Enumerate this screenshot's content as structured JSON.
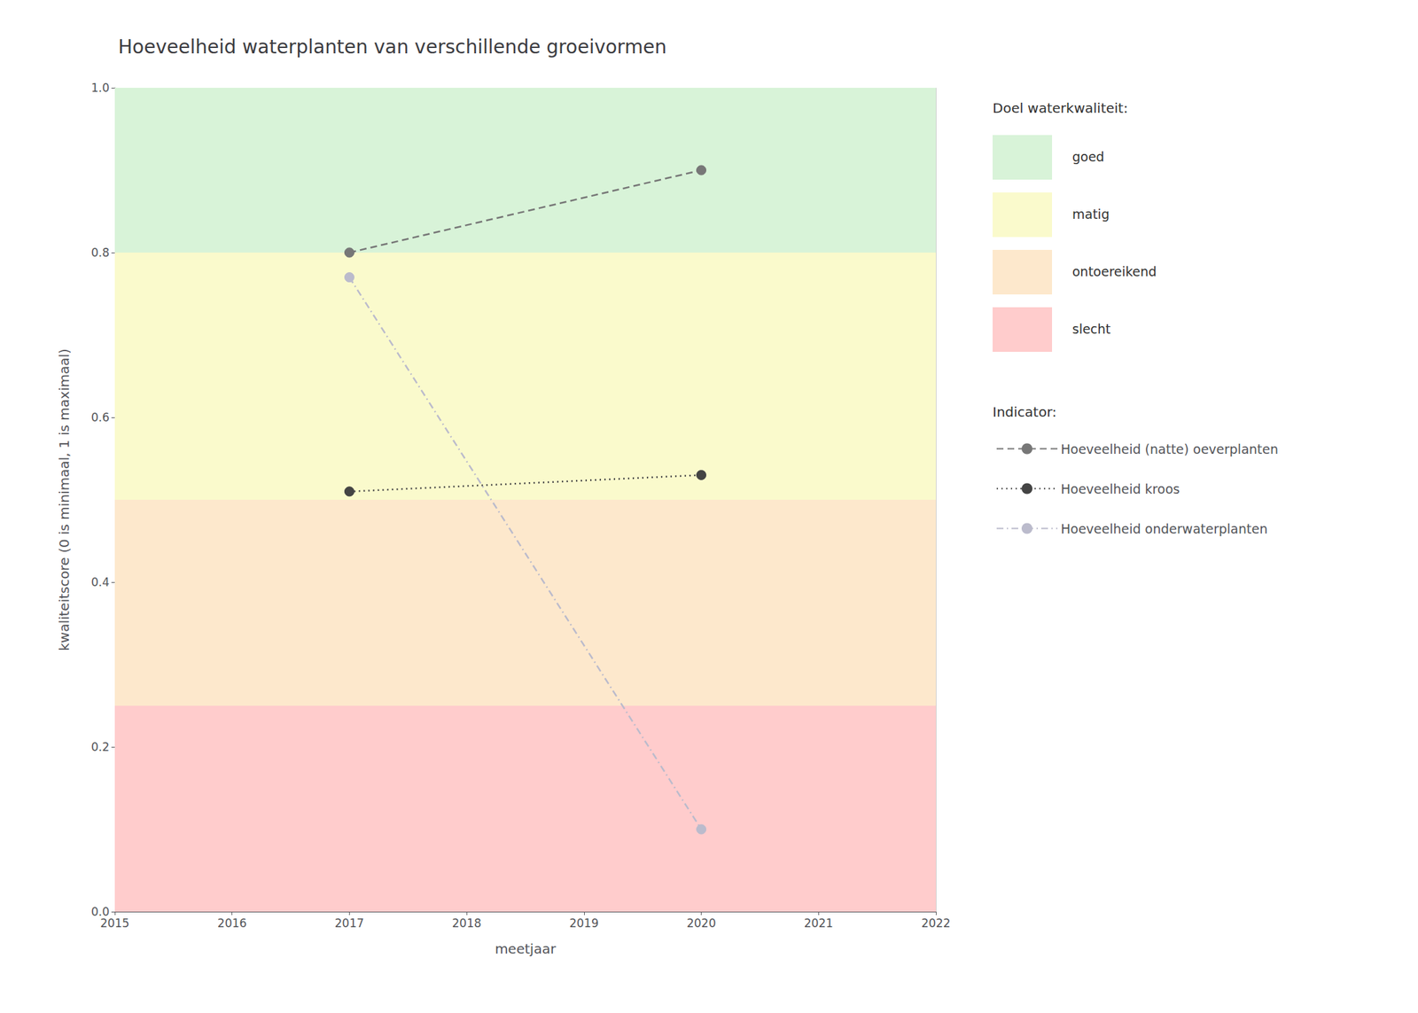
{
  "chart_data": {
    "type": "line",
    "title": "Hoeveelheid waterplanten van verschillende groeivormen",
    "xlabel": "meetjaar",
    "ylabel": "kwaliteitscore (0 is minimaal, 1 is maximaal)",
    "xlim": [
      2015,
      2022
    ],
    "ylim": [
      0.0,
      1.0
    ],
    "xticks": [
      2015,
      2016,
      2017,
      2018,
      2019,
      2020,
      2021,
      2022
    ],
    "yticks": [
      {
        "value": 0.0,
        "label": "0.0"
      },
      0.2,
      0.4,
      0.6,
      0.8,
      {
        "value": 1.0,
        "label": "1.0"
      }
    ],
    "grid": true,
    "legend": "right",
    "bands_title": "Doel waterkwaliteit:",
    "bands": [
      {
        "ymin": 0.0,
        "ymax": 0.25,
        "color": "#ffcccc",
        "label": "slecht"
      },
      {
        "ymin": 0.25,
        "ymax": 0.5,
        "color": "#fde8cc",
        "label": "ontoereikend"
      },
      {
        "ymin": 0.5,
        "ymax": 0.8,
        "color": "#fafacc",
        "label": "matig"
      },
      {
        "ymin": 0.8,
        "ymax": 1.0,
        "color": "#d8f3d8",
        "label": "goed"
      }
    ],
    "series_title": "Indicator:",
    "series": [
      {
        "name": "Hoeveelheid (natte) oeverplanten",
        "x": [
          2017,
          2020
        ],
        "values": [
          0.8,
          0.9
        ],
        "color": "#777777",
        "line_style": "dashed",
        "marker": "circle"
      },
      {
        "name": "Hoeveelheid kroos",
        "x": [
          2017,
          2020
        ],
        "values": [
          0.51,
          0.53
        ],
        "color": "#444444",
        "line_style": "dotted",
        "marker": "circle"
      },
      {
        "name": "Hoeveelheid onderwaterplanten",
        "x": [
          2017,
          2020
        ],
        "values": [
          0.77,
          0.1
        ],
        "color": "#bbbbcc",
        "line_style": "dashdot",
        "marker": "circle"
      }
    ]
  }
}
